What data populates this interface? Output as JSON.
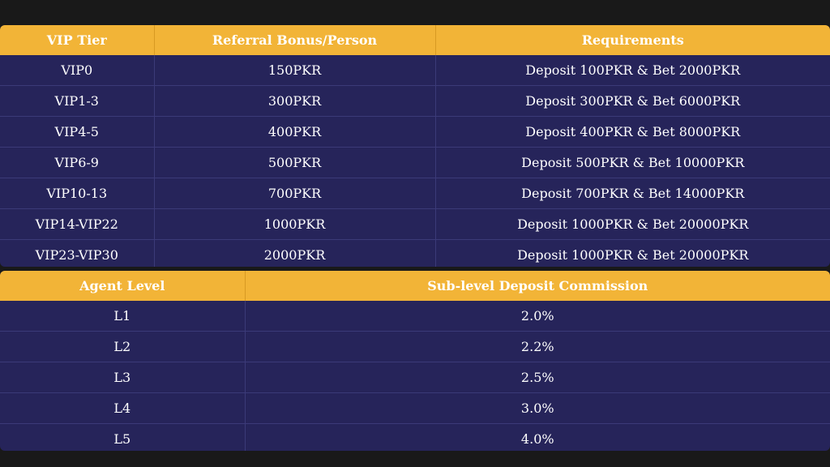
{
  "vip_table": {
    "headers": [
      "VIP Tier",
      "Referral Bonus/Person",
      "Requirements"
    ],
    "rows": [
      [
        "VIP0",
        "150PKR",
        "Deposit 100PKR & Bet 2000PKR"
      ],
      [
        "VIP1-3",
        "300PKR",
        "Deposit 300PKR & Bet 6000PKR"
      ],
      [
        "VIP4-5",
        "400PKR",
        "Deposit 400PKR & Bet 8000PKR"
      ],
      [
        "VIP6-9",
        "500PKR",
        "Deposit 500PKR & Bet 10000PKR"
      ],
      [
        "VIP10-13",
        "700PKR",
        "Deposit 700PKR & Bet 14000PKR"
      ],
      [
        "VIP14-VIP22",
        "1000PKR",
        "Deposit 1000PKR & Bet 20000PKR"
      ],
      [
        "VIP23-VIP30",
        "2000PKR",
        "Deposit 1000PKR & Bet 20000PKR"
      ]
    ]
  },
  "agent_table": {
    "headers": [
      "Agent Level",
      "Sub-level Deposit Commission"
    ],
    "rows": [
      [
        "L1",
        "2.0%"
      ],
      [
        "L2",
        "2.2%"
      ],
      [
        "L3",
        "2.5%"
      ],
      [
        "L4",
        "3.0%"
      ],
      [
        "L5",
        "4.0%"
      ]
    ]
  },
  "colors": {
    "header_bg": "#f2b437",
    "body_bg": "#26245a",
    "page_bg": "#191919",
    "text": "#ffffff"
  }
}
